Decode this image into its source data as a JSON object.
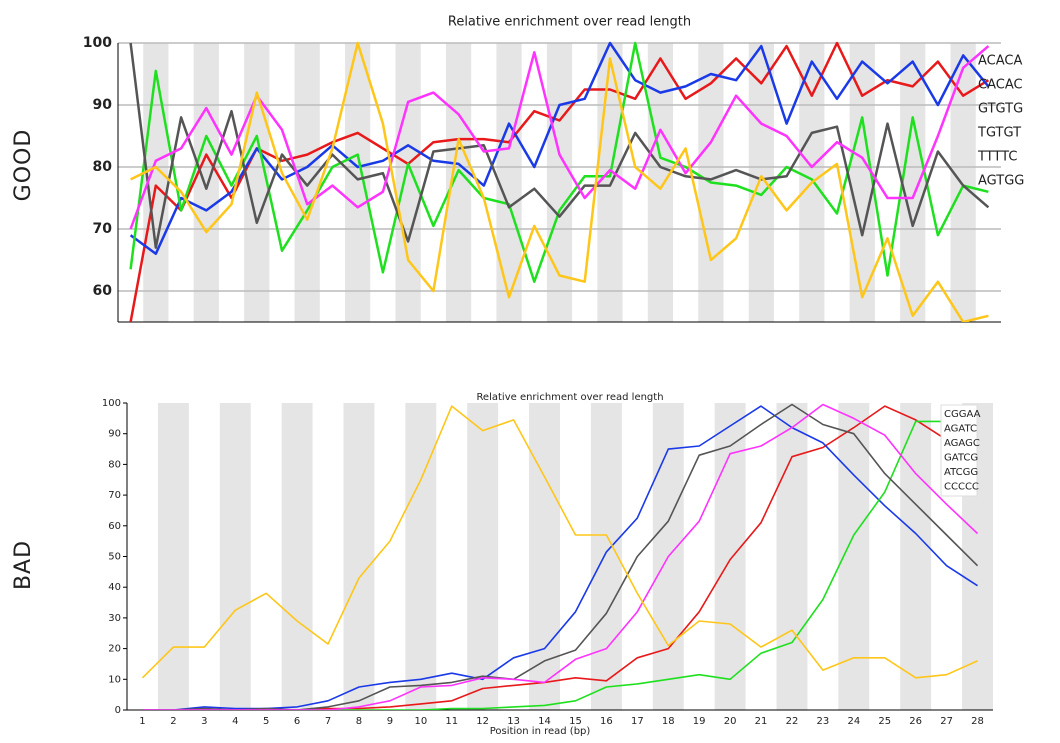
{
  "chart_data": [
    {
      "type": "line",
      "panel_label": "GOOD",
      "title": "Relative enrichment over read length",
      "categories": [
        null,
        null,
        null,
        null,
        null,
        null,
        null,
        null,
        null,
        null,
        null,
        null,
        null,
        null,
        null,
        null,
        null,
        null,
        null,
        null,
        null,
        null,
        null,
        null,
        null,
        null,
        null,
        null,
        null,
        null,
        null,
        null,
        null,
        null,
        null
      ],
      "ylim": [
        55,
        100
      ],
      "yticks": [
        60,
        70,
        80,
        90,
        100
      ],
      "grid": true,
      "legend": "top-right",
      "series": [
        {
          "name": "ACACA",
          "color": "#e8191a",
          "values": [
            55,
            77,
            73,
            82,
            75,
            83,
            81,
            82,
            84,
            85.5,
            83,
            80.5,
            84,
            84.5,
            84.5,
            84,
            89,
            87.5,
            92.5,
            92.5,
            91,
            97.5,
            91,
            93.5,
            97.5,
            93.5,
            99.5,
            91.5,
            100,
            91.5,
            94,
            93,
            97,
            91.5,
            94
          ]
        },
        {
          "name": "CACAC",
          "color": "#1a3ae8",
          "values": [
            69,
            66,
            75,
            73,
            76,
            83,
            78,
            80,
            83.5,
            80,
            81,
            83.5,
            81,
            80.5,
            77,
            87,
            80,
            90,
            91,
            100,
            94,
            92,
            93,
            95,
            94,
            99.5,
            87,
            97,
            91,
            97,
            93.5,
            97,
            90,
            98,
            93
          ]
        },
        {
          "name": "GTGTG",
          "color": "#1fe01f",
          "values": [
            63.5,
            95.5,
            73,
            85,
            77,
            85,
            66.5,
            73,
            80,
            82,
            63,
            80.5,
            70.5,
            79.5,
            75,
            74,
            61.5,
            73,
            78.5,
            78.5,
            100,
            81.5,
            80,
            77.5,
            77,
            75.5,
            80,
            78,
            72.5,
            88,
            62.5,
            88,
            69,
            77,
            76
          ]
        },
        {
          "name": "TGTGT",
          "color": "#555555",
          "values": [
            100,
            67,
            88,
            76.5,
            89,
            71,
            82,
            77,
            82,
            78,
            79,
            68,
            82.5,
            83,
            83.5,
            73.5,
            76.5,
            72,
            77,
            77,
            85.5,
            80,
            78.5,
            78,
            79.5,
            78,
            78.5,
            85.5,
            86.5,
            69,
            87,
            70.5,
            82.5,
            77,
            73.5
          ]
        },
        {
          "name": "TTTTC",
          "color": "#ff33ff",
          "values": [
            70,
            81,
            83,
            89.5,
            82,
            91.5,
            86,
            74,
            77,
            73.5,
            76,
            90.5,
            92,
            88.5,
            82.5,
            83,
            98.5,
            82,
            75,
            79.5,
            76.5,
            86,
            79,
            84,
            91.5,
            87,
            85,
            80,
            84,
            81.5,
            75,
            75,
            85,
            96,
            99.5
          ]
        },
        {
          "name": "AGTGG",
          "color": "#ffc61a",
          "values": [
            78,
            80,
            76,
            69.5,
            74,
            92,
            79,
            71.5,
            83,
            100,
            87,
            65,
            60,
            84.5,
            75,
            59,
            70.5,
            62.5,
            61.5,
            97.5,
            80,
            76.5,
            83,
            65,
            68.5,
            78.5,
            73,
            77.5,
            80.5,
            59,
            68.5,
            56,
            61.5,
            55,
            56
          ]
        }
      ]
    },
    {
      "type": "line",
      "panel_label": "BAD",
      "title": "Relative enrichment over read length",
      "x_label": "Position in read (bp)",
      "categories": [
        "1",
        "2",
        "3",
        "4",
        "5",
        "6",
        "7",
        "8",
        "9",
        "10",
        "11",
        "12",
        "13",
        "14",
        "15",
        "16",
        "17",
        "18",
        "19",
        "20",
        "21",
        "22",
        "23",
        "24",
        "25",
        "26",
        "27",
        "28"
      ],
      "ylim": [
        0,
        100
      ],
      "yticks": [
        0,
        10,
        20,
        30,
        40,
        50,
        60,
        70,
        80,
        90,
        100
      ],
      "grid": false,
      "legend": "top-right",
      "series": [
        {
          "name": "CGGAA",
          "color": "#e8191a",
          "values": [
            0,
            0,
            0,
            0,
            0,
            0,
            0.5,
            0.5,
            1,
            2,
            3,
            7,
            8,
            9,
            10.5,
            9.5,
            17,
            20,
            32,
            49,
            61,
            82.5,
            85.5,
            92,
            99,
            94.5,
            88,
            82
          ]
        },
        {
          "name": "AGATC",
          "color": "#1a3ae8",
          "values": [
            0,
            0,
            1,
            0.5,
            0.5,
            1,
            3,
            7.5,
            9,
            10,
            12,
            10,
            17,
            20,
            32,
            51.5,
            62.5,
            85,
            86,
            92.5,
            99,
            92,
            87,
            76.5,
            66.5,
            57.5,
            47,
            40.5
          ]
        },
        {
          "name": "AGAGC",
          "color": "#1fe01f",
          "values": [
            0,
            0,
            0,
            0,
            0,
            0,
            0,
            0,
            0,
            0,
            0.5,
            0.5,
            1,
            1.5,
            3,
            7.5,
            8.5,
            10,
            11.5,
            10,
            18.5,
            22,
            36,
            57,
            71,
            94,
            94,
            93
          ]
        },
        {
          "name": "GATCG",
          "color": "#555555",
          "values": [
            0,
            0,
            0.5,
            0,
            0.5,
            0,
            1,
            3,
            7.5,
            8,
            9,
            11,
            10,
            16,
            19.5,
            31.5,
            50,
            61.5,
            83,
            86,
            93,
            99.5,
            93,
            90,
            77,
            67,
            57,
            47
          ]
        },
        {
          "name": "ATCGG",
          "color": "#ff33ff",
          "values": [
            0,
            0,
            0,
            0,
            0,
            0,
            0,
            1,
            3,
            7.5,
            8,
            10.5,
            10,
            9,
            16.5,
            20,
            32,
            50,
            61.5,
            83.5,
            86,
            92,
            99.5,
            95,
            89.5,
            77,
            67,
            57.5
          ]
        },
        {
          "name": "CCCCC",
          "color": "#ffc61a",
          "values": [
            10.5,
            20.5,
            20.5,
            32.5,
            38,
            29,
            21.5,
            43,
            55,
            75,
            99,
            91,
            94.5,
            76,
            57,
            57,
            38,
            21,
            29,
            28,
            20.5,
            26,
            13,
            17,
            17,
            10.5,
            11.5,
            16
          ]
        }
      ]
    }
  ]
}
